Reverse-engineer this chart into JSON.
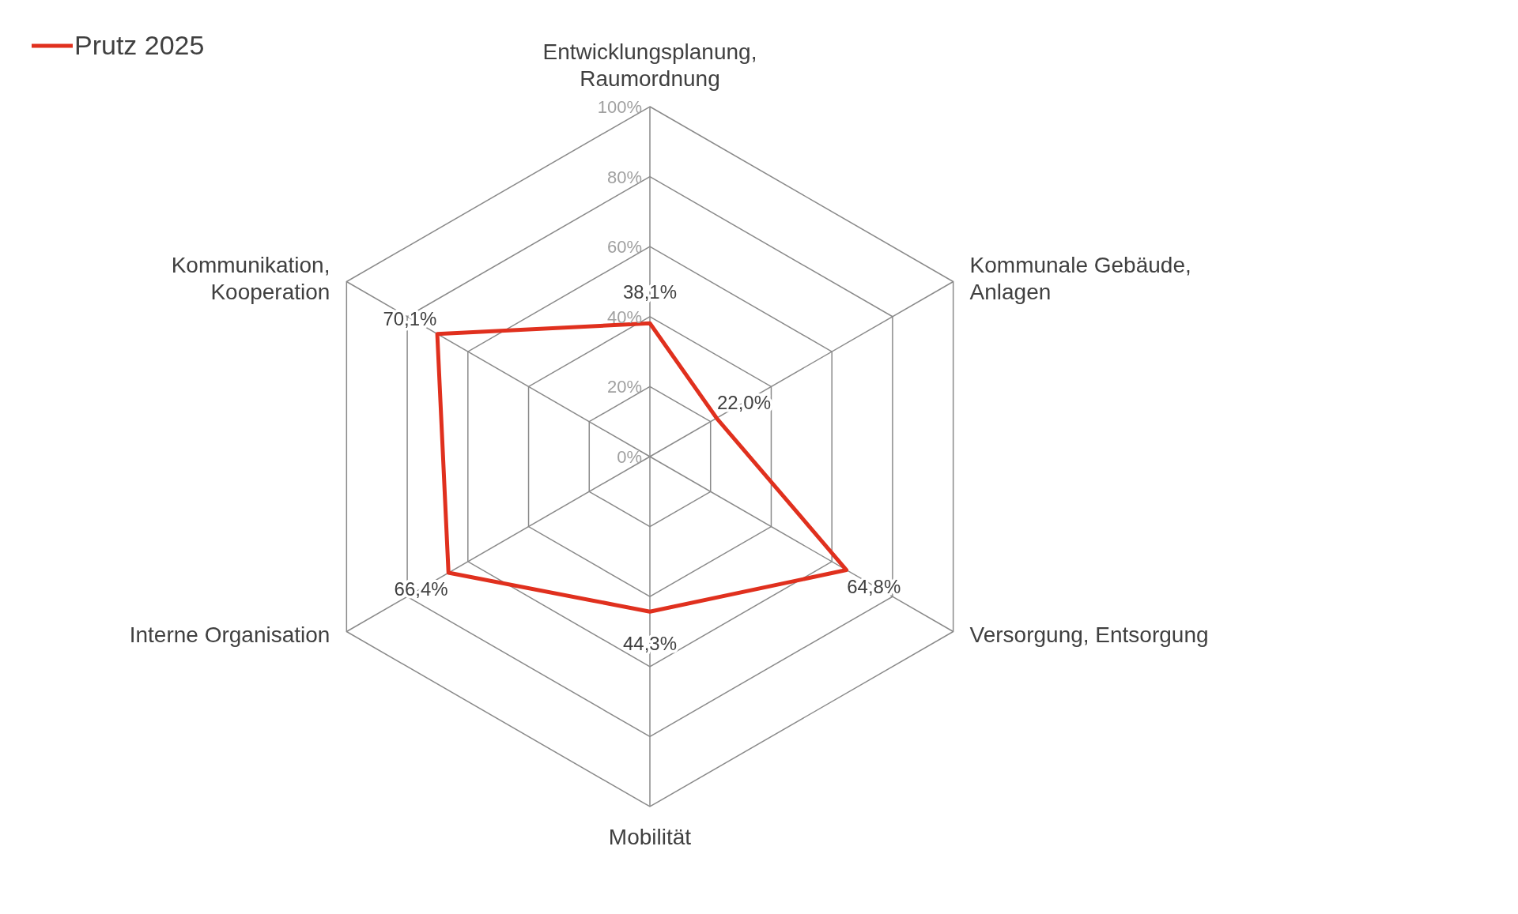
{
  "chart_data": {
    "type": "radar",
    "categories": [
      "Entwicklungsplanung, Raumordnung",
      "Kommunale Gebäude, Anlagen",
      "Versorgung, Entsorgung",
      "Mobilität",
      "Interne Organisation",
      "Kommunikation, Kooperation"
    ],
    "series": [
      {
        "name": "Prutz 2025",
        "color": "#e0301e",
        "values": [
          38.1,
          22.0,
          64.8,
          44.3,
          66.4,
          70.1
        ],
        "value_labels": [
          "38,1%",
          "22,0%",
          "64,8%",
          "44,3%",
          "66,4%",
          "70,1%"
        ]
      }
    ],
    "ylim": [
      0,
      100
    ],
    "yticks": [
      {
        "value": 0,
        "label": "0%"
      },
      {
        "value": 20,
        "label": "20%"
      },
      {
        "value": 40,
        "label": "40%"
      },
      {
        "value": 60,
        "label": "60%"
      },
      {
        "value": 80,
        "label": "80%"
      },
      {
        "value": 100,
        "label": "100%"
      }
    ],
    "legend": "top left",
    "marker": "none",
    "line_style": "solid",
    "grid": true
  }
}
